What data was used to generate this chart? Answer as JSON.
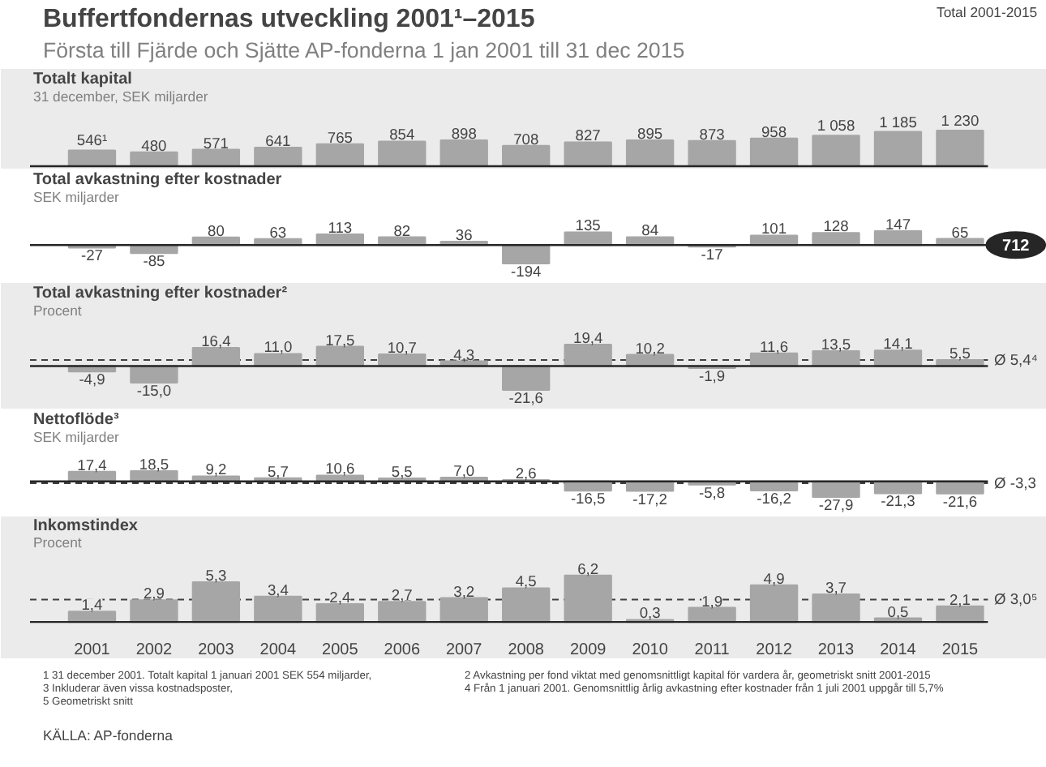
{
  "chart_data": [
    {
      "type": "other",
      "title": "Buffertfondernas utveckling 2001¹–2015",
      "subtitle": "Första till Fjärde och Sjätte AP-fonderna 1 jan 2001 till 31 dec 2015",
      "annotations": [
        "Total 2001-2015",
        "1 31 december 2001. Totalt kapital 1 januari 2001 SEK 554 miljarder,",
        "2 Avkastning per fond viktat med genomsnittligt kapital för vardera år, geometriskt snitt 2001-2015",
        "3 Inkluderar även vissa kostnadsposter,",
        "4 Från 1 januari 2001. Genomsnittlig årlig avkastning efter kostnader från 1 juli 2001 uppgår till 5,7%",
        "5 Geometriskt snitt",
        "KÄLLA: AP-fonderna"
      ]
    },
    {
      "type": "bar",
      "title": "Totalt kapital",
      "subtitle": "31 december, SEK miljarder",
      "categories": [
        "2001",
        "2002",
        "2003",
        "2004",
        "2005",
        "2006",
        "2007",
        "2008",
        "2009",
        "2010",
        "2011",
        "2012",
        "2013",
        "2014",
        "2015"
      ],
      "color": "#a6a6a6",
      "tick_labels": false,
      "values": [
        546,
        480,
        571,
        641,
        765,
        854,
        898,
        708,
        827,
        895,
        873,
        958,
        1058,
        1185,
        1230
      ],
      "value_labels": [
        "546¹",
        "480",
        "571",
        "641",
        "765",
        "854",
        "898",
        "708",
        "827",
        "895",
        "873",
        "958",
        "1 058",
        "1 185",
        "1 230"
      ]
    },
    {
      "type": "bar",
      "title": "Total avkastning efter kostnader",
      "subtitle": "SEK miljarder",
      "categories": [
        "2001",
        "2002",
        "2003",
        "2004",
        "2005",
        "2006",
        "2007",
        "2008",
        "2009",
        "2010",
        "2011",
        "2012",
        "2013",
        "2014",
        "2015"
      ],
      "color": "#a6a6a6",
      "tick_labels": false,
      "values": [
        -27,
        -85,
        80,
        63,
        113,
        82,
        36,
        -194,
        135,
        84,
        -17,
        101,
        128,
        147,
        65
      ],
      "value_labels": [
        "-27",
        "-85",
        "80",
        "63",
        "113",
        "82",
        "36",
        "-194",
        "135",
        "84",
        "-17",
        "101",
        "128",
        "147",
        "65"
      ],
      "annotations": [
        "712"
      ]
    },
    {
      "type": "bar",
      "title": "Total avkastning efter kostnader²",
      "subtitle": "Procent",
      "categories": [
        "2001",
        "2002",
        "2003",
        "2004",
        "2005",
        "2006",
        "2007",
        "2008",
        "2009",
        "2010",
        "2011",
        "2012",
        "2013",
        "2014",
        "2015"
      ],
      "color": "#a6a6a6",
      "tick_labels": false,
      "values": [
        -4.9,
        -15.0,
        16.4,
        11.0,
        17.5,
        10.7,
        4.3,
        -21.6,
        19.4,
        10.2,
        -1.9,
        11.6,
        13.5,
        14.1,
        5.5
      ],
      "value_labels": [
        "-4,9",
        "-15,0",
        "16,4",
        "11,0",
        "17,5",
        "10,7",
        "4,3",
        "-21,6",
        "19,4",
        "10,2",
        "-1,9",
        "11,6",
        "13,5",
        "14,1",
        "5,5"
      ],
      "ref_lines": [
        {
          "axis": "y",
          "value": 5.4,
          "label": "Ø 5,4⁴",
          "color": "#404040",
          "line_style": "dashed"
        }
      ]
    },
    {
      "type": "bar",
      "title": "Nettoflöde³",
      "subtitle": "SEK miljarder",
      "categories": [
        "2001",
        "2002",
        "2003",
        "2004",
        "2005",
        "2006",
        "2007",
        "2008",
        "2009",
        "2010",
        "2011",
        "2012",
        "2013",
        "2014",
        "2015"
      ],
      "color": "#a6a6a6",
      "tick_labels": false,
      "values": [
        17.4,
        18.5,
        9.2,
        5.7,
        10.6,
        5.5,
        7.0,
        2.6,
        -16.5,
        -17.2,
        -5.8,
        -16.2,
        -27.9,
        -21.3,
        -21.6
      ],
      "value_labels": [
        "17,4",
        "18,5",
        "9,2",
        "5,7",
        "10,6",
        "5,5",
        "7,0",
        "2,6",
        "-16,5",
        "-17,2",
        "-5,8",
        "-16,2",
        "-27,9",
        "-21,3",
        "-21,6"
      ],
      "ref_lines": [
        {
          "axis": "y",
          "value": -3.3,
          "label": "Ø -3,3",
          "color": "#404040",
          "line_style": "dashed"
        }
      ]
    },
    {
      "type": "bar",
      "title": "Inkomstindex",
      "subtitle": "Procent",
      "categories": [
        "2001",
        "2002",
        "2003",
        "2004",
        "2005",
        "2006",
        "2007",
        "2008",
        "2009",
        "2010",
        "2011",
        "2012",
        "2013",
        "2014",
        "2015"
      ],
      "color": "#a6a6a6",
      "tick_labels": "x",
      "values": [
        1.4,
        2.9,
        5.3,
        3.4,
        2.4,
        2.7,
        3.2,
        4.5,
        6.2,
        0.3,
        1.9,
        4.9,
        3.7,
        0.5,
        2.1
      ],
      "value_labels": [
        "1,4",
        "2,9",
        "5,3",
        "3,4",
        "2,4",
        "2,7",
        "3,2",
        "4,5",
        "6,2",
        "0,3",
        "1,9",
        "4,9",
        "3,7",
        "0,5",
        "2,1"
      ],
      "ref_lines": [
        {
          "axis": "y",
          "value": 3.0,
          "label": "Ø 3,0⁵",
          "color": "#404040",
          "line_style": "dashed"
        }
      ]
    }
  ]
}
